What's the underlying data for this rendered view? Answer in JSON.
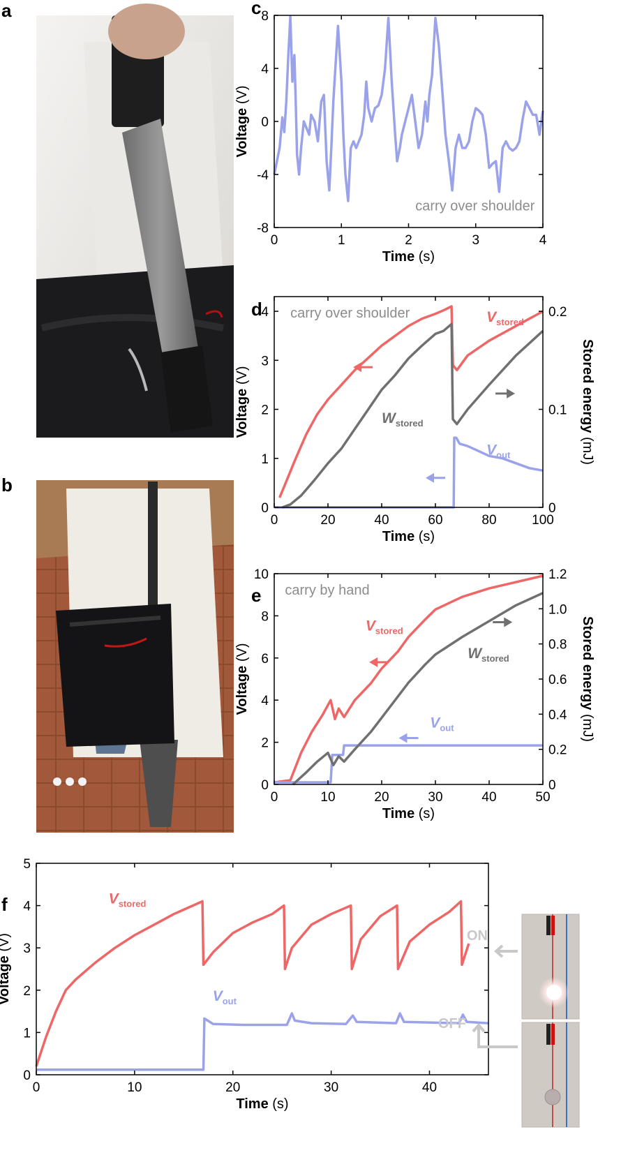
{
  "panels": {
    "a": {
      "letter": "a"
    },
    "b": {
      "letter": "b"
    },
    "c": {
      "letter": "c"
    },
    "d": {
      "letter": "d"
    },
    "e": {
      "letter": "e"
    },
    "f": {
      "letter": "f"
    }
  },
  "colors": {
    "stored": "#ee6666",
    "out": "#9aa2ea",
    "energy": "#707070",
    "annot_gray": "#8c8c8c",
    "photo_bg": "#cfcac3"
  },
  "photos": {
    "f_on_label": "ON",
    "f_off_label": "OFF"
  },
  "chart_data": [
    {
      "id": "c",
      "type": "line",
      "xlabel": "Time",
      "xunit": "(s)",
      "ylabel": "Voltage",
      "yunit": "(V)",
      "xlim": [
        0,
        4
      ],
      "ylim": [
        -8,
        8
      ],
      "xticks": [
        0,
        1,
        2,
        3,
        4
      ],
      "yticks": [
        -8,
        -4,
        0,
        4,
        8
      ],
      "annotation": "carry over shoulder",
      "series": [
        {
          "key": "voltage",
          "color": "#9aa2ea",
          "x": [
            0,
            0.08,
            0.12,
            0.15,
            0.18,
            0.21,
            0.24,
            0.27,
            0.3,
            0.32,
            0.34,
            0.37,
            0.4,
            0.44,
            0.48,
            0.52,
            0.55,
            0.6,
            0.65,
            0.7,
            0.74,
            0.78,
            0.82,
            0.85,
            0.88,
            0.91,
            0.95,
            1.0,
            1.03,
            1.06,
            1.1,
            1.14,
            1.18,
            1.22,
            1.26,
            1.3,
            1.34,
            1.37,
            1.4,
            1.45,
            1.5,
            1.55,
            1.6,
            1.65,
            1.7,
            1.75,
            1.8,
            1.83,
            1.87,
            1.9,
            1.95,
            2.0,
            2.05,
            2.1,
            2.15,
            2.2,
            2.25,
            2.28,
            2.31,
            2.35,
            2.4,
            2.45,
            2.5,
            2.55,
            2.6,
            2.65,
            2.7,
            2.75,
            2.8,
            2.85,
            2.9,
            2.95,
            3.0,
            3.05,
            3.1,
            3.15,
            3.2,
            3.25,
            3.3,
            3.35,
            3.4,
            3.45,
            3.5,
            3.55,
            3.6,
            3.65,
            3.7,
            3.75,
            3.8,
            3.85,
            3.9,
            3.95,
            4.0
          ],
          "y": [
            -4,
            -2,
            0.3,
            -0.8,
            1.5,
            5,
            7.9,
            3,
            5,
            1.5,
            -2.5,
            -4,
            -2,
            0,
            -0.5,
            -1,
            0.5,
            0,
            -1.5,
            1.5,
            2,
            -3,
            -5.2,
            -2,
            1.5,
            4,
            7.2,
            3,
            -1,
            -4,
            -6,
            -2,
            -1.5,
            -2,
            -1.5,
            -1,
            0.5,
            3,
            1,
            0,
            1,
            1.2,
            2,
            4,
            7.8,
            3,
            -1,
            -3,
            -2,
            -1,
            0,
            1,
            2,
            0,
            -2,
            -1,
            1.5,
            0,
            2,
            3.5,
            7.8,
            5.8,
            2.5,
            -1,
            -3,
            -5.2,
            -2,
            -1,
            -2,
            -2,
            -1.5,
            0,
            1,
            0.8,
            0.5,
            -1,
            -3.5,
            -3.2,
            -3,
            -5.3,
            -2,
            -1.5,
            -2,
            -2.2,
            -2,
            -1.5,
            0.2,
            1.5,
            1,
            0.5,
            0.5,
            -1,
            0.8
          ]
        }
      ]
    },
    {
      "id": "d",
      "type": "line",
      "xlabel": "Time",
      "xunit": "(s)",
      "ylabel": "Voltage",
      "yunit": "(V)",
      "y2label": "Stored energy",
      "y2unit": "(mJ)",
      "xlim": [
        0,
        100
      ],
      "ylim": [
        0,
        4.3
      ],
      "y2lim": [
        0,
        0.215
      ],
      "xticks": [
        0,
        20,
        40,
        60,
        80,
        100
      ],
      "yticks": [
        0,
        1,
        2,
        3,
        4
      ],
      "y2ticks": [
        0,
        0.1,
        0.2
      ],
      "y2ticklabels": [
        "0",
        "0.1",
        "0.2"
      ],
      "annotation": "carry over shoulder",
      "labels": {
        "stored": {
          "main": "V",
          "sub": "stored"
        },
        "out": {
          "main": "V",
          "sub": "out"
        },
        "energy": {
          "main": "W",
          "sub": "stored"
        }
      },
      "series": [
        {
          "key": "V_stored",
          "color": "#ee6666",
          "x": [
            2,
            5,
            8,
            12,
            16,
            20,
            25,
            30,
            35,
            40,
            45,
            50,
            55,
            60,
            63,
            66,
            66.5,
            68,
            72,
            80,
            90,
            100
          ],
          "y": [
            0.2,
            0.6,
            1.0,
            1.5,
            1.9,
            2.2,
            2.5,
            2.8,
            3.05,
            3.3,
            3.5,
            3.7,
            3.85,
            3.95,
            4.02,
            4.1,
            2.9,
            2.8,
            3.1,
            3.4,
            3.7,
            4.0
          ]
        },
        {
          "key": "V_out",
          "color": "#9aa2ea",
          "x": [
            0,
            66.8,
            67,
            67.8,
            69,
            72,
            76,
            80,
            85,
            90,
            95,
            100
          ],
          "y": [
            0,
            0,
            1.42,
            1.42,
            1.3,
            1.25,
            1.15,
            1.05,
            1.0,
            0.9,
            0.8,
            0.75
          ]
        },
        {
          "key": "W_stored",
          "color": "#707070",
          "axis": "right",
          "x": [
            3,
            6,
            10,
            15,
            20,
            25,
            30,
            35,
            40,
            45,
            50,
            55,
            60,
            63,
            66,
            66.5,
            68,
            72,
            80,
            90,
            100
          ],
          "y": [
            0,
            0.003,
            0.012,
            0.028,
            0.045,
            0.06,
            0.08,
            0.1,
            0.12,
            0.135,
            0.152,
            0.165,
            0.177,
            0.18,
            0.187,
            0.09,
            0.085,
            0.1,
            0.125,
            0.155,
            0.18
          ]
        }
      ]
    },
    {
      "id": "e",
      "type": "line",
      "xlabel": "Time",
      "xunit": "(s)",
      "ylabel": "Voltage",
      "yunit": "(V)",
      "y2label": "Stored energy",
      "y2unit": "(mJ)",
      "xlim": [
        0,
        50
      ],
      "ylim": [
        0,
        10
      ],
      "y2lim": [
        0,
        1.2
      ],
      "xticks": [
        0,
        10,
        20,
        30,
        40,
        50
      ],
      "yticks": [
        0,
        2,
        4,
        6,
        8,
        10
      ],
      "y2ticks": [
        0,
        0.2,
        0.4,
        0.6,
        0.8,
        1.0,
        1.2
      ],
      "y2ticklabels": [
        "0",
        "0.2",
        "0.4",
        "0.6",
        "0.8",
        "1.0",
        "1.2"
      ],
      "annotation": "carry by hand",
      "labels": {
        "stored": {
          "main": "V",
          "sub": "stored"
        },
        "out": {
          "main": "V",
          "sub": "out"
        },
        "energy": {
          "main": "W",
          "sub": "stored"
        }
      },
      "series": [
        {
          "key": "V_stored",
          "color": "#ee6666",
          "x": [
            0,
            3,
            5,
            7,
            9,
            10.5,
            11.3,
            12,
            13,
            15,
            18,
            20,
            23,
            25,
            28,
            30,
            35,
            40,
            45,
            50
          ],
          "y": [
            0.1,
            0.2,
            1.5,
            2.5,
            3.3,
            4.0,
            3.1,
            3.6,
            3.2,
            4.0,
            4.8,
            5.5,
            6.3,
            7.0,
            7.8,
            8.3,
            8.9,
            9.3,
            9.6,
            9.9
          ]
        },
        {
          "key": "V_out",
          "color": "#9aa2ea",
          "x": [
            0,
            10.5,
            10.8,
            12.8,
            13,
            50
          ],
          "y": [
            0.1,
            0.1,
            1.4,
            1.4,
            1.85,
            1.85
          ]
        },
        {
          "key": "W_stored",
          "color": "#707070",
          "axis": "right",
          "x": [
            3.5,
            6,
            8,
            10,
            11,
            12,
            13,
            15,
            18,
            20,
            23,
            25,
            28,
            30,
            35,
            40,
            45,
            50
          ],
          "y": [
            0,
            0.07,
            0.13,
            0.18,
            0.11,
            0.16,
            0.13,
            0.2,
            0.3,
            0.38,
            0.5,
            0.58,
            0.68,
            0.74,
            0.84,
            0.93,
            1.02,
            1.09
          ]
        }
      ]
    },
    {
      "id": "f",
      "type": "line",
      "xlabel": "Time",
      "xunit": "(s)",
      "ylabel": "Voltage",
      "yunit": "(V)",
      "xlim": [
        0,
        46
      ],
      "ylim": [
        0,
        5
      ],
      "xticks": [
        0,
        10,
        20,
        30,
        40
      ],
      "yticks": [
        0,
        1,
        2,
        3,
        4,
        5
      ],
      "labels": {
        "stored": {
          "main": "V",
          "sub": "stored"
        },
        "out": {
          "main": "V",
          "sub": "out"
        }
      },
      "series": [
        {
          "key": "V_stored",
          "color": "#ee6666",
          "x": [
            0,
            1,
            2,
            3,
            4,
            6,
            8,
            10,
            12,
            14,
            16.9,
            17,
            18,
            20,
            22,
            24,
            25.2,
            25.3,
            26,
            28,
            30,
            32,
            32.1,
            33,
            35,
            36.7,
            36.8,
            38,
            40,
            42,
            43.2,
            43.3,
            44
          ],
          "y": [
            0.2,
            0.9,
            1.5,
            2.0,
            2.25,
            2.65,
            3.0,
            3.3,
            3.55,
            3.8,
            4.1,
            2.6,
            2.9,
            3.35,
            3.6,
            3.8,
            4.0,
            2.5,
            3.0,
            3.55,
            3.8,
            4.0,
            2.5,
            3.2,
            3.75,
            4.0,
            2.5,
            3.15,
            3.55,
            3.85,
            4.1,
            2.6,
            3.1
          ]
        },
        {
          "key": "V_out",
          "color": "#9aa2ea",
          "x": [
            0,
            17,
            17.1,
            18,
            21,
            25.5,
            26,
            26.3,
            28,
            31.5,
            32.2,
            32.6,
            36.6,
            37,
            37.4,
            43,
            43.4,
            43.8,
            46
          ],
          "y": [
            0.12,
            0.12,
            1.33,
            1.2,
            1.18,
            1.18,
            1.45,
            1.28,
            1.22,
            1.2,
            1.4,
            1.25,
            1.22,
            1.45,
            1.25,
            1.22,
            1.42,
            1.25,
            1.22
          ]
        }
      ]
    }
  ]
}
